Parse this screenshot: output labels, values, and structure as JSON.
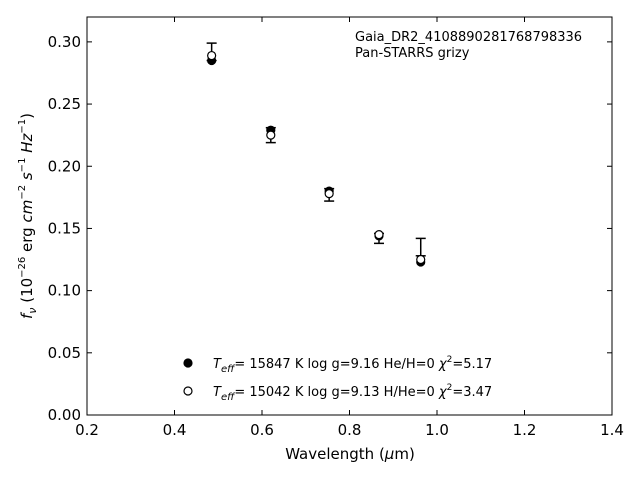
{
  "chart_data": {
    "type": "scatter",
    "xlabel": "Wavelength (μm)",
    "ylabel": "fν (10⁻²⁶ erg cm⁻² s⁻¹ Hz⁻¹)",
    "xlim": [
      0.2,
      1.4
    ],
    "ylim": [
      0.0,
      0.32
    ],
    "xticks": [
      "0.2",
      "0.4",
      "0.6",
      "0.8",
      "1.0",
      "1.2",
      "1.4"
    ],
    "yticks": [
      "0.00",
      "0.05",
      "0.10",
      "0.15",
      "0.20",
      "0.25",
      "0.30"
    ],
    "annotations": [
      "Gaia_DR2_4108890281768798336",
      "Pan-STARRS grizy"
    ],
    "observed": {
      "x": [
        0.4849,
        0.6201,
        0.7535,
        0.8674,
        0.9628
      ],
      "y": [
        0.292,
        0.225,
        0.177,
        0.142,
        0.135
      ],
      "yerr": [
        0.007,
        0.006,
        0.005,
        0.004,
        0.007
      ]
    },
    "series": [
      {
        "name": "Teff= 15847 K  log g=9.16  He/H=0  χ²=5.17",
        "marker": "filled-circle",
        "x": [
          0.4849,
          0.6201,
          0.7535,
          0.8674,
          0.9628
        ],
        "y": [
          0.285,
          0.229,
          0.18,
          0.144,
          0.123
        ]
      },
      {
        "name": "Teff= 15042 K  log g=9.13  H/He=0  χ²=3.47",
        "marker": "open-circle",
        "x": [
          0.4849,
          0.6201,
          0.7535,
          0.8674,
          0.9628
        ],
        "y": [
          0.289,
          0.225,
          0.178,
          0.145,
          0.125
        ]
      }
    ],
    "legend": {
      "placement": "bottom-center",
      "entries": [
        {
          "teff_label": "T",
          "teff_sub": "eff",
          "rest": "= 15847 K  log g=9.16  He/H=0  ",
          "chi": "χ",
          "chi_sup": "2",
          "chi_val": "=5.17"
        },
        {
          "teff_label": "T",
          "teff_sub": "eff",
          "rest": "= 15042 K  log g=9.13  H/He=0  ",
          "chi": "χ",
          "chi_sup": "2",
          "chi_val": "=3.47"
        }
      ]
    }
  }
}
